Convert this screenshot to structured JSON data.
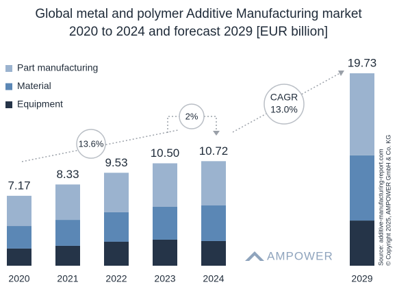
{
  "chart_data": {
    "type": "stacked_bar",
    "title": "Global metal and polymer Additive Manufacturing market",
    "subtitle": "2020 to 2024 and forecast 2029 [EUR billion]",
    "categories": [
      "2020",
      "2021",
      "2022",
      "2023",
      "2024",
      "2029"
    ],
    "series": [
      {
        "name": "Equipment",
        "color": "#253448",
        "values": [
          1.76,
          2.04,
          2.46,
          2.67,
          2.53,
          4.63
        ]
      },
      {
        "name": "Material",
        "color": "#5b87b5",
        "values": [
          2.31,
          2.66,
          3.02,
          3.37,
          3.65,
          6.68
        ]
      },
      {
        "name": "Part manufacturing",
        "color": "#9bb3cf",
        "values": [
          3.1,
          3.63,
          4.05,
          4.46,
          4.54,
          8.42
        ]
      }
    ],
    "totals": [
      7.17,
      8.33,
      9.53,
      10.5,
      10.72,
      19.73
    ],
    "value_labels": [
      "7.17",
      "8.33",
      "9.53",
      "10.50",
      "10.72",
      "19.73"
    ],
    "annotations": [
      "13.6%",
      "2%",
      "CAGR",
      "13.0%"
    ],
    "source": [
      "Source: additive-manufacturing-report.com",
      "© Copyright 2025, AMPOWER GmbH & Co. KG"
    ],
    "logo": "AMPOWER"
  }
}
